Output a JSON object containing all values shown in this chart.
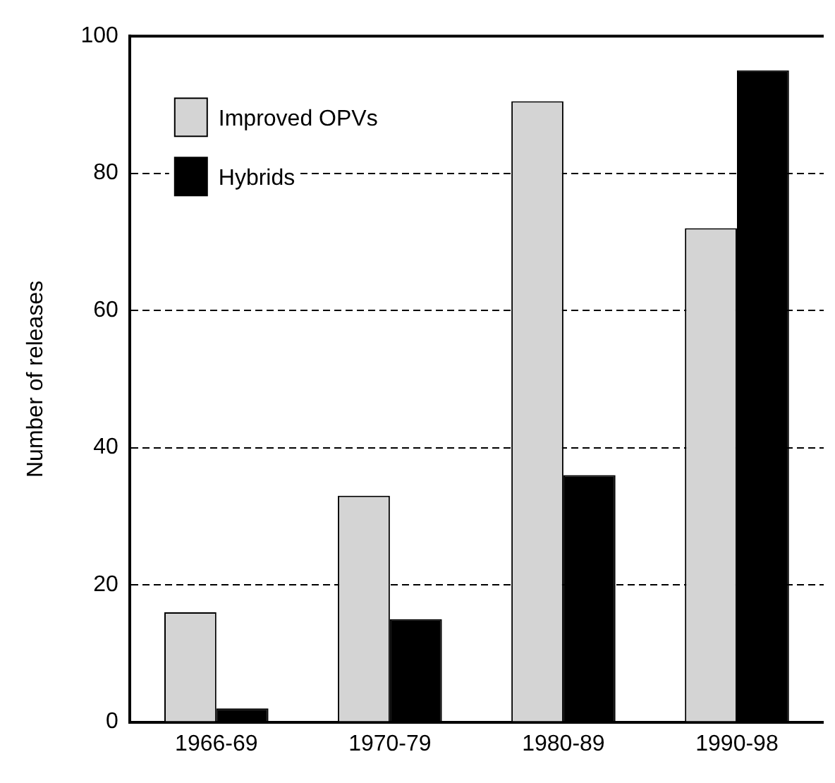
{
  "chart_data": {
    "type": "bar",
    "ylabel": "Number of releases",
    "categories": [
      "1966-69",
      "1970-79",
      "1980-89",
      "1990-98"
    ],
    "series": [
      {
        "name": "Improved OPVs",
        "color": "#d4d4d4",
        "values": [
          16,
          33,
          90.5,
          72
        ]
      },
      {
        "name": "Hybrids",
        "color": "#000000",
        "values": [
          2,
          15,
          36,
          95
        ]
      }
    ],
    "ylim": [
      0,
      100
    ],
    "yticks": [
      0,
      20,
      40,
      60,
      80,
      100
    ],
    "grid": "y",
    "legend": "top left"
  }
}
